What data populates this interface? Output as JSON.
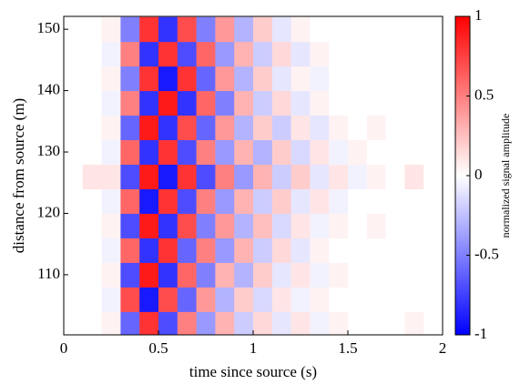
{
  "chart_data": {
    "type": "heatmap",
    "xlabel": "time since source (s)",
    "ylabel": "distance from source (m)",
    "colorbar_label": "normalized signal amplitude",
    "x": [
      0.05,
      0.15,
      0.25,
      0.35,
      0.45,
      0.55,
      0.65,
      0.75,
      0.85,
      0.95,
      1.05,
      1.15,
      1.25,
      1.35,
      1.45,
      1.55,
      1.65,
      1.75,
      1.85,
      1.95
    ],
    "y": [
      102,
      106,
      110,
      114,
      118,
      122,
      126,
      130,
      134,
      138,
      142,
      146,
      150
    ],
    "z": [
      [
        0,
        0,
        0.05,
        -0.6,
        0.8,
        -0.7,
        0.5,
        -0.4,
        0.3,
        -0.2,
        0.15,
        -0.1,
        0.1,
        -0.05,
        0.05,
        0,
        0,
        0,
        0.05,
        0
      ],
      [
        0,
        0,
        -0.05,
        0.7,
        -0.9,
        0.7,
        -0.6,
        0.4,
        -0.3,
        0.2,
        -0.15,
        0.1,
        -0.05,
        0.05,
        0,
        0,
        0,
        0,
        0,
        0
      ],
      [
        0,
        0,
        0.05,
        -0.7,
        0.9,
        -0.8,
        0.6,
        -0.5,
        0.3,
        -0.3,
        0.2,
        -0.1,
        0.1,
        -0.05,
        0.05,
        0,
        0,
        0,
        0,
        0
      ],
      [
        0,
        0,
        -0.05,
        0.6,
        -0.8,
        0.8,
        -0.6,
        0.5,
        -0.4,
        0.3,
        -0.2,
        0.15,
        -0.1,
        0.05,
        0,
        0,
        0,
        0,
        0,
        0
      ],
      [
        0,
        0,
        0.05,
        -0.7,
        0.9,
        -0.8,
        0.7,
        -0.5,
        0.4,
        -0.3,
        0.25,
        -0.15,
        0.1,
        -0.05,
        0.05,
        0,
        0.05,
        0,
        0,
        0
      ],
      [
        0,
        0,
        -0.05,
        0.6,
        -0.9,
        0.8,
        -0.7,
        0.5,
        -0.4,
        0.3,
        -0.2,
        0.2,
        -0.1,
        0.1,
        -0.05,
        0,
        0,
        0,
        0,
        0
      ],
      [
        0,
        0.1,
        0.1,
        -0.7,
        0.9,
        -0.9,
        0.8,
        -0.7,
        0.5,
        -0.4,
        0.3,
        -0.2,
        0.2,
        -0.1,
        0.1,
        -0.05,
        0.05,
        0,
        0.1,
        0
      ],
      [
        0,
        0,
        -0.05,
        0.6,
        -0.8,
        0.8,
        -0.7,
        0.5,
        -0.4,
        0.3,
        -0.3,
        0.2,
        -0.15,
        0.1,
        -0.05,
        0.05,
        0,
        0,
        0,
        0
      ],
      [
        0,
        0,
        0.05,
        -0.6,
        0.9,
        -0.8,
        0.7,
        -0.6,
        0.4,
        -0.3,
        0.2,
        -0.2,
        0.1,
        -0.1,
        0.05,
        0,
        0.05,
        0,
        0,
        0
      ],
      [
        0,
        0,
        -0.05,
        0.5,
        -0.8,
        0.9,
        -0.8,
        0.6,
        -0.5,
        0.3,
        -0.2,
        0.15,
        -0.1,
        0.05,
        0,
        0,
        0,
        0,
        0,
        0
      ],
      [
        0,
        0,
        0.05,
        -0.5,
        0.8,
        -0.9,
        0.8,
        -0.6,
        0.4,
        -0.3,
        0.2,
        -0.1,
        0.05,
        -0.05,
        0,
        0,
        0,
        0,
        0,
        0
      ],
      [
        0,
        0,
        -0.05,
        0.5,
        -0.8,
        0.8,
        -0.7,
        0.6,
        -0.4,
        0.3,
        -0.2,
        0.15,
        -0.1,
        0.05,
        0,
        0,
        0,
        0,
        0,
        0
      ],
      [
        0,
        0,
        0.05,
        -0.5,
        0.8,
        -0.8,
        0.7,
        -0.5,
        0.4,
        -0.3,
        0.2,
        -0.1,
        0.05,
        0,
        0,
        0,
        0,
        0,
        0,
        0
      ]
    ],
    "xlim": [
      0,
      2
    ],
    "xticks": [
      0,
      0.5,
      1,
      1.5,
      2
    ],
    "ylim": [
      100.2,
      152.1
    ],
    "yticks": [
      110,
      120,
      130,
      140,
      150
    ],
    "zlim": [
      -1,
      1
    ],
    "zticks": [
      1,
      0.5,
      0,
      -0.5,
      -1
    ],
    "colormap": [
      "#0000ff",
      "#ffffff",
      "#ff0000"
    ]
  }
}
